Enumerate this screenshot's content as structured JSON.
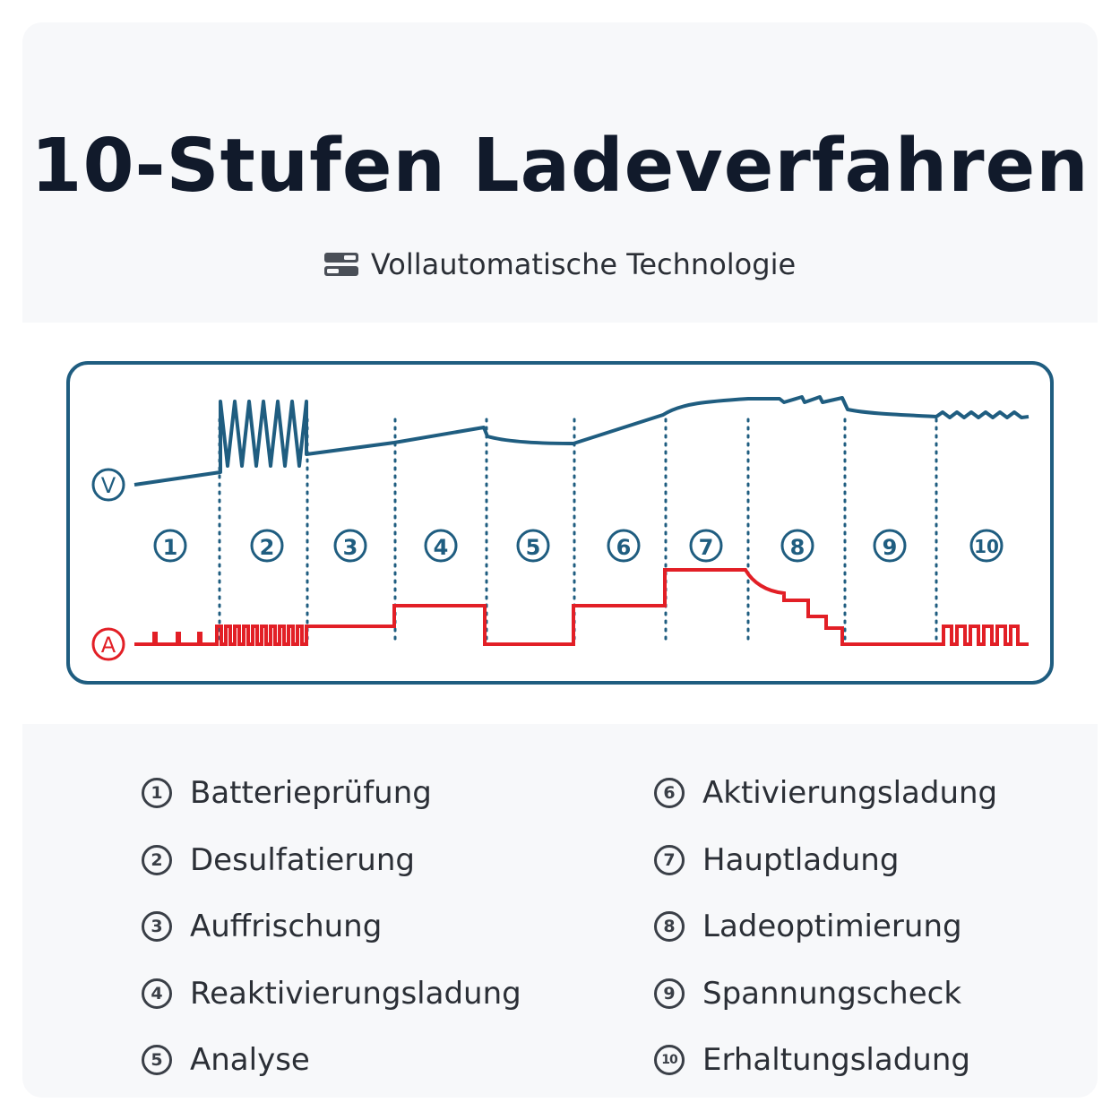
{
  "title": "10-Stufen Ladeverfahren",
  "subtitle": "Vollautomatische Technologie",
  "subtitle_icon": "stacked-bars-icon",
  "diagram": {
    "voltage_symbol": "V",
    "current_symbol": "A",
    "voltage_color": "#1f5d80",
    "current_color": "#e21f26",
    "frame_color": "#1f5d80",
    "stages": [
      "1",
      "2",
      "3",
      "4",
      "5",
      "6",
      "7",
      "8",
      "9",
      "10"
    ]
  },
  "legend": {
    "left": [
      {
        "num": "1",
        "label": "Batterieprüfung"
      },
      {
        "num": "2",
        "label": "Desulfatierung"
      },
      {
        "num": "3",
        "label": "Auffrischung"
      },
      {
        "num": "4",
        "label": "Reaktivierungsladung"
      },
      {
        "num": "5",
        "label": "Analyse"
      }
    ],
    "right": [
      {
        "num": "6",
        "label": "Aktivierungsladung"
      },
      {
        "num": "7",
        "label": "Hauptladung"
      },
      {
        "num": "8",
        "label": "Ladeoptimierung"
      },
      {
        "num": "9",
        "label": "Spannungscheck"
      },
      {
        "num": "10",
        "label": "Erhaltungsladung"
      }
    ]
  }
}
